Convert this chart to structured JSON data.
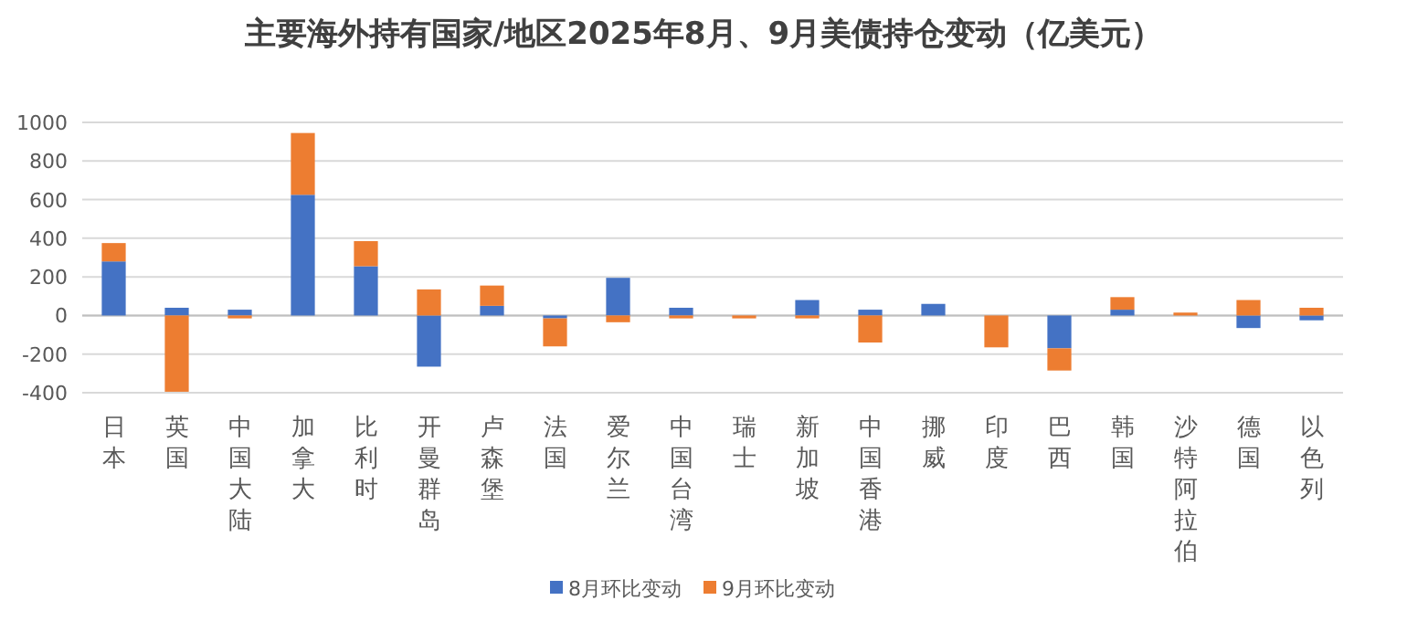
{
  "chart_data": {
    "type": "bar",
    "stacked": true,
    "title": "主要海外持有国家/地区2025年8月、9月美债持仓变动（亿美元）",
    "categories": [
      "日本",
      "英国",
      "中国大陆",
      "加拿大",
      "比利时",
      "开曼群岛",
      "卢森堡",
      "法国",
      "爱尔兰",
      "中国台湾",
      "瑞士",
      "新加坡",
      "中国香港",
      "挪威",
      "印度",
      "巴西",
      "韩国",
      "沙特阿拉伯",
      "德国",
      "以色列"
    ],
    "series": [
      {
        "name": "8月环比变动",
        "color": "#4472c4",
        "values": [
          280,
          40,
          30,
          625,
          255,
          -265,
          50,
          -15,
          195,
          40,
          0,
          80,
          30,
          60,
          0,
          -170,
          30,
          0,
          -65,
          -25
        ]
      },
      {
        "name": "9月环比变动",
        "color": "#ed7d31",
        "values": [
          95,
          -395,
          -15,
          320,
          130,
          135,
          105,
          -145,
          -35,
          -15,
          -15,
          -15,
          -140,
          0,
          -165,
          -115,
          65,
          15,
          80,
          40
        ]
      }
    ],
    "ylim": [
      -400,
      1000
    ],
    "yticks": [
      -400,
      -200,
      0,
      200,
      400,
      600,
      800,
      1000
    ],
    "grid": "y",
    "legend": "bottom"
  }
}
